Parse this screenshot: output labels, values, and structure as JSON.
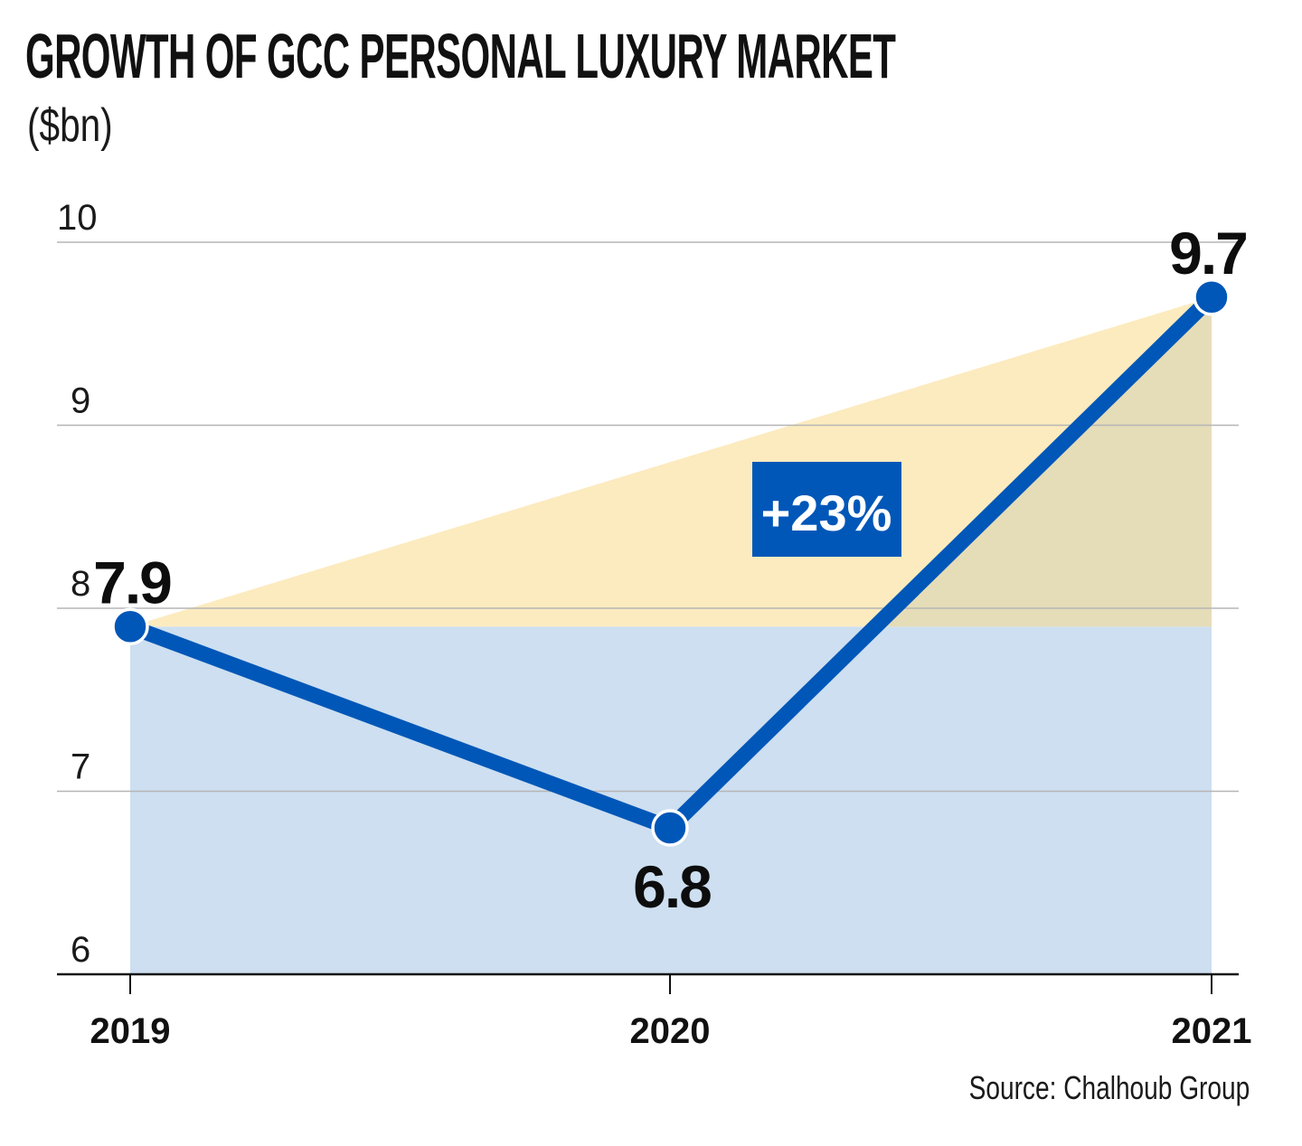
{
  "title": "GROWTH OF GCC PERSONAL LUXURY MARKET",
  "subtitle": "($bn)",
  "source": "Source: Chalhoub Group",
  "colors": {
    "line": "#0057b8",
    "area_blue": "#cddff0",
    "area_yellow": "#fcebbf",
    "overlap": "#e5dcb8",
    "badge": "#0057b8",
    "grid": "#b5b5b5",
    "axis": "#111111"
  },
  "chart_data": {
    "type": "line",
    "title": "GROWTH OF GCC PERSONAL LUXURY MARKET",
    "ylabel": "($bn)",
    "categories": [
      "2019",
      "2020",
      "2021"
    ],
    "values": [
      7.9,
      6.8,
      9.7
    ],
    "value_labels": [
      "7.9",
      "6.8",
      "9.7"
    ],
    "ylim": [
      6,
      10
    ],
    "yticks": [
      6,
      7,
      8,
      9,
      10
    ],
    "grid": true,
    "annotation": {
      "text": "+23%",
      "from_value": 7.9,
      "to_value": 9.7
    }
  }
}
